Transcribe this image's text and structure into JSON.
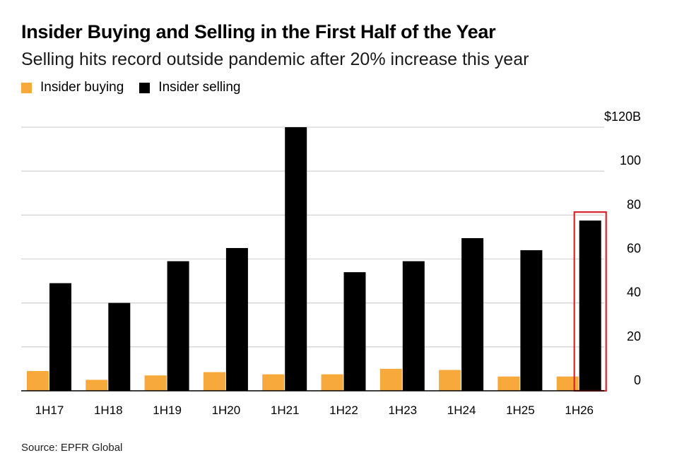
{
  "colors": {
    "buying": "#f7a93b",
    "selling": "#000000",
    "highlight": "#d9262a",
    "grid": "#d4d4d4"
  },
  "chart_data": {
    "type": "bar",
    "title": "Insider Buying and Selling in the First Half of the Year",
    "subtitle": "Selling hits record outside pandemic after 20% increase this year",
    "categories": [
      "1H17",
      "1H18",
      "1H19",
      "1H20",
      "1H21",
      "1H22",
      "1H23",
      "1H24",
      "1H25",
      "1H26"
    ],
    "series": [
      {
        "name": "Insider buying",
        "values": [
          9,
          5,
          7,
          8.5,
          7.5,
          7.5,
          10,
          9.5,
          6.5,
          6.5
        ]
      },
      {
        "name": "Insider selling",
        "values": [
          49,
          40,
          59,
          65,
          120,
          54,
          59,
          69.5,
          64,
          77.5
        ]
      }
    ],
    "yticks": [
      0,
      20,
      40,
      60,
      80,
      100,
      120
    ],
    "ytick_labels": [
      "0",
      "20",
      "40",
      "60",
      "80",
      "100",
      "$120B"
    ],
    "ylim": [
      0,
      120
    ],
    "grid": true,
    "legend": "top-left",
    "y_axis_side": "right",
    "highlighted_category": "1H26",
    "source": "Source: EPFR Global"
  }
}
